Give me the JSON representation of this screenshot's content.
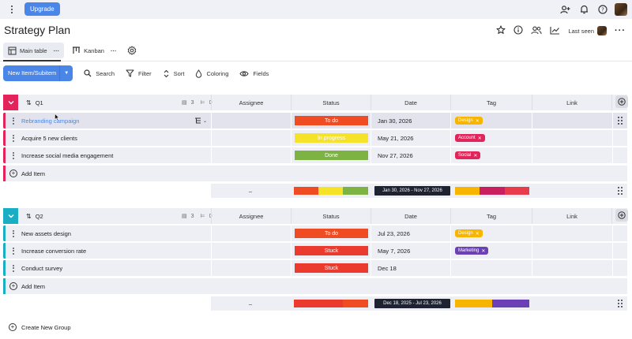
{
  "topbar": {
    "upgrade_label": "Upgrade"
  },
  "header": {
    "title": "Strategy Plan",
    "last_seen_label": "Last seen"
  },
  "views": [
    {
      "label": "Main table"
    },
    {
      "label": "Kanban"
    }
  ],
  "toolbar": {
    "new_item_label": "New Item/Subitem",
    "search_label": "Search",
    "filter_label": "Filter",
    "sort_label": "Sort",
    "coloring_label": "Coloring",
    "fields_label": "Fields"
  },
  "columns": {
    "assignee": "Assignee",
    "status": "Status",
    "date": "Date",
    "tag": "Tag",
    "link": "Link"
  },
  "add_item_label": "Add Item",
  "create_group_label": "Create New Group",
  "groups": [
    {
      "name": "Q1",
      "color": "#e2245a",
      "item_count": "3",
      "subitem_count": "0",
      "items": [
        {
          "name": "Rebranding campaign",
          "status": "To do",
          "status_color": "#f04c24",
          "date": "Jan 30, 2026",
          "tag": "Design",
          "tag_color": "#f7b500"
        },
        {
          "name": "Acquire 5 new clients",
          "status": "In progress",
          "status_color": "#f7e22a",
          "date": "May 21, 2026",
          "tag": "Account",
          "tag_color": "#e2245a"
        },
        {
          "name": "Increase social media engagement",
          "status": "Done",
          "status_color": "#7cb342",
          "date": "Nov 27, 2026",
          "tag": "Social",
          "tag_color": "#e2245a"
        }
      ],
      "summary": {
        "dash": "–",
        "date_range": "Jan 30, 2026 - Nov 27, 2026"
      }
    },
    {
      "name": "Q2",
      "color": "#1aaec4",
      "item_count": "3",
      "subitem_count": "0",
      "items": [
        {
          "name": "New assets design",
          "status": "To do",
          "status_color": "#f04c24",
          "date": "Jul 23, 2026",
          "tag": "Design",
          "tag_color": "#f7b500"
        },
        {
          "name": "Increase conversion rate",
          "status": "Stuck",
          "status_color": "#eb3b2f",
          "date": "May 7, 2026",
          "tag": "Marketing",
          "tag_color": "#6b3fb5"
        },
        {
          "name": "Conduct survey",
          "status": "Stuck",
          "status_color": "#eb3b2f",
          "date": "Dec 18",
          "tag": "",
          "tag_color": ""
        }
      ],
      "summary": {
        "dash": "–",
        "date_range": "Dec 18, 2025 - Jul 23, 2026"
      }
    }
  ]
}
